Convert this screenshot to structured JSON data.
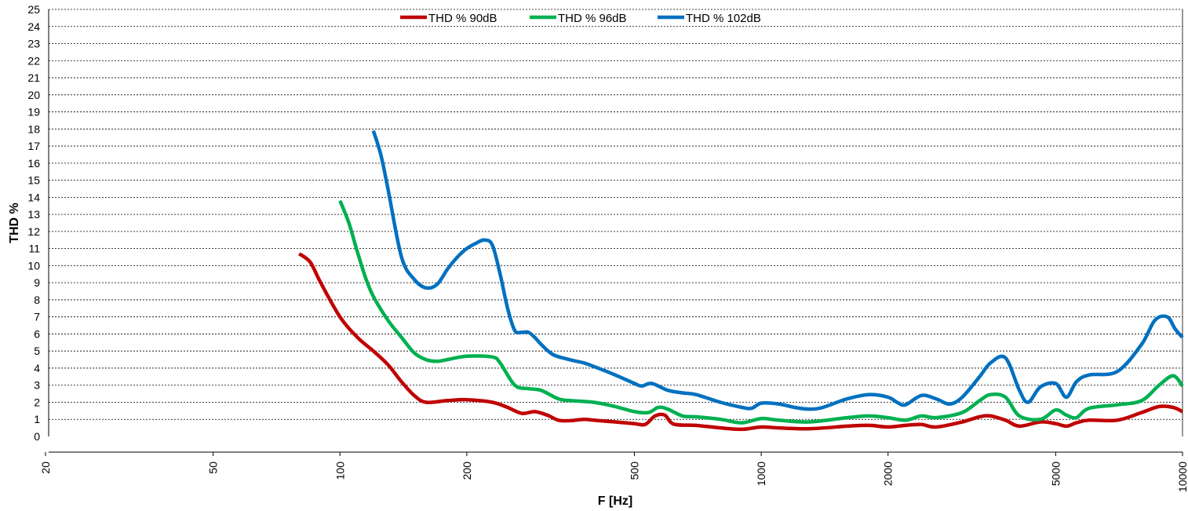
{
  "chart_data": {
    "type": "line",
    "title": "",
    "xlabel": "F [Hz]",
    "ylabel": "THD %",
    "x_scale": "log",
    "xlim": [
      20,
      10000
    ],
    "ylim": [
      0,
      25
    ],
    "x_ticks": [
      20,
      50,
      100,
      200,
      500,
      1000,
      2000,
      5000,
      10000
    ],
    "x_tick_labels": [
      "20",
      "50",
      "100",
      "200",
      "500",
      "1000",
      "2000",
      "5000",
      "10000"
    ],
    "y_ticks": [
      0,
      1,
      2,
      3,
      4,
      5,
      6,
      7,
      8,
      9,
      10,
      11,
      12,
      13,
      14,
      15,
      16,
      17,
      18,
      19,
      20,
      21,
      22,
      23,
      24,
      25
    ],
    "y_tick_labels": [
      "0",
      "1",
      "2",
      "3",
      "4",
      "5",
      "6",
      "7",
      "8",
      "9",
      "10",
      "11",
      "12",
      "13",
      "14",
      "15",
      "16",
      "17",
      "18",
      "19",
      "20",
      "21",
      "22",
      "23",
      "24",
      "25"
    ],
    "grid": "horizontal dashed",
    "legend_position": "top-center",
    "series": [
      {
        "name": "THD % 90dB",
        "color": "#c00000",
        "x": [
          80,
          85,
          90,
          100,
          110,
          120,
          130,
          140,
          150,
          160,
          180,
          200,
          230,
          250,
          270,
          290,
          310,
          330,
          350,
          380,
          400,
          450,
          500,
          530,
          560,
          590,
          620,
          700,
          800,
          900,
          1000,
          1100,
          1300,
          1600,
          1800,
          2000,
          2200,
          2400,
          2600,
          3000,
          3300,
          3500,
          3800,
          4100,
          4600,
          5000,
          5300,
          5600,
          6000,
          7000,
          8000,
          8800,
          9500,
          10000
        ],
        "values": [
          10.7,
          10.2,
          9.0,
          7.0,
          5.8,
          5.0,
          4.2,
          3.2,
          2.4,
          2.0,
          2.1,
          2.15,
          2.0,
          1.7,
          1.35,
          1.45,
          1.25,
          0.95,
          0.92,
          1.0,
          0.95,
          0.85,
          0.75,
          0.7,
          1.2,
          1.25,
          0.72,
          0.65,
          0.5,
          0.42,
          0.55,
          0.5,
          0.45,
          0.6,
          0.65,
          0.55,
          0.65,
          0.7,
          0.55,
          0.85,
          1.15,
          1.2,
          0.95,
          0.6,
          0.85,
          0.75,
          0.6,
          0.8,
          0.95,
          0.95,
          1.4,
          1.75,
          1.7,
          1.45
        ]
      },
      {
        "name": "THD % 96dB",
        "color": "#00b050",
        "x": [
          100,
          105,
          110,
          115,
          120,
          130,
          140,
          150,
          160,
          170,
          180,
          200,
          230,
          240,
          260,
          280,
          300,
          330,
          350,
          400,
          450,
          500,
          540,
          570,
          600,
          650,
          700,
          800,
          900,
          1000,
          1100,
          1300,
          1600,
          1800,
          2000,
          2200,
          2400,
          2600,
          3000,
          3300,
          3500,
          3800,
          4100,
          4600,
          5000,
          5300,
          5600,
          6000,
          7000,
          8000,
          8800,
          9500,
          10000
        ],
        "values": [
          13.8,
          12.5,
          10.8,
          9.3,
          8.2,
          6.8,
          5.8,
          4.9,
          4.5,
          4.4,
          4.5,
          4.7,
          4.65,
          4.3,
          3.0,
          2.8,
          2.7,
          2.2,
          2.1,
          2.0,
          1.75,
          1.45,
          1.4,
          1.7,
          1.6,
          1.2,
          1.15,
          1.0,
          0.8,
          1.05,
          0.95,
          0.85,
          1.1,
          1.2,
          1.1,
          0.95,
          1.2,
          1.1,
          1.4,
          2.1,
          2.45,
          2.3,
          1.2,
          1.0,
          1.55,
          1.25,
          1.1,
          1.65,
          1.85,
          2.1,
          3.0,
          3.55,
          2.95
        ]
      },
      {
        "name": "THD % 102dB",
        "color": "#0070c0",
        "x": [
          120,
          125,
          130,
          140,
          150,
          160,
          170,
          180,
          190,
          200,
          210,
          220,
          230,
          240,
          250,
          260,
          270,
          280,
          290,
          300,
          320,
          350,
          380,
          400,
          450,
          500,
          520,
          550,
          600,
          650,
          700,
          800,
          900,
          950,
          1000,
          1100,
          1200,
          1300,
          1400,
          1600,
          1800,
          2000,
          2100,
          2200,
          2400,
          2600,
          2800,
          3000,
          3300,
          3500,
          3800,
          4100,
          4300,
          4600,
          5000,
          5300,
          5600,
          6000,
          7000,
          8000,
          8600,
          9200,
          9600,
          10000
        ],
        "values": [
          17.9,
          16.5,
          14.5,
          10.5,
          9.2,
          8.7,
          8.9,
          9.8,
          10.5,
          11.0,
          11.3,
          11.5,
          11.2,
          9.5,
          7.5,
          6.2,
          6.1,
          6.1,
          5.8,
          5.4,
          4.8,
          4.5,
          4.3,
          4.1,
          3.6,
          3.1,
          2.95,
          3.1,
          2.7,
          2.55,
          2.45,
          2.0,
          1.7,
          1.65,
          1.95,
          1.9,
          1.7,
          1.6,
          1.7,
          2.2,
          2.45,
          2.3,
          2.0,
          1.85,
          2.4,
          2.2,
          1.9,
          2.3,
          3.5,
          4.3,
          4.6,
          2.7,
          2.0,
          2.9,
          3.1,
          2.3,
          3.2,
          3.6,
          3.8,
          5.4,
          6.8,
          7.0,
          6.3,
          5.8
        ]
      }
    ]
  }
}
